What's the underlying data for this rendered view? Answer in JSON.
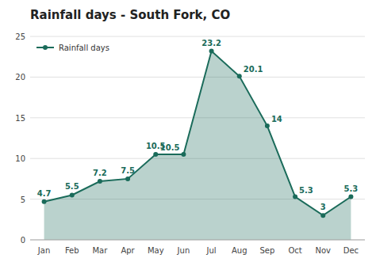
{
  "chart_data": {
    "type": "area",
    "title": "Rainfall days - South Fork, CO",
    "categories": [
      "Jan",
      "Feb",
      "Mar",
      "Apr",
      "May",
      "Jun",
      "Jul",
      "Aug",
      "Sep",
      "Oct",
      "Nov",
      "Dec"
    ],
    "series": [
      {
        "name": "Rainfall days",
        "color": "#1a6b5a",
        "marker": "circle",
        "values": [
          4.7,
          5.5,
          7.2,
          7.5,
          10.5,
          10.5,
          23.2,
          20.1,
          14,
          5.3,
          3,
          5.3
        ]
      }
    ],
    "ylim": [
      0,
      25
    ],
    "yticks": [
      0,
      5,
      10,
      15,
      20,
      25
    ],
    "grid": true,
    "legend": "upper left",
    "data_labels": true
  }
}
